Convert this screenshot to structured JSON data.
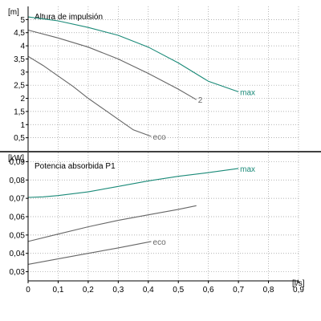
{
  "chart_data": [
    {
      "type": "line",
      "title": "Altura de impulsión",
      "ylabel": "[m]",
      "xlabel": "[l/s]",
      "xlim": [
        0,
        0.9
      ],
      "ylim": [
        0,
        5.5
      ],
      "grid": true,
      "x_ticks": [
        "0",
        "0,1",
        "0,2",
        "0,3",
        "0,4",
        "0,5",
        "0,6",
        "0,7",
        "0,8",
        "0,9"
      ],
      "y_ticks": [
        {
          "v": 0.5,
          "label": "0,5"
        },
        {
          "v": 1,
          "label": "1"
        },
        {
          "v": 1.5,
          "label": "1,5"
        },
        {
          "v": 2,
          "label": "2"
        },
        {
          "v": 2.5,
          "label": "2,5"
        },
        {
          "v": 3,
          "label": "3"
        },
        {
          "v": 3.5,
          "label": "3,5"
        },
        {
          "v": 4,
          "label": "4"
        },
        {
          "v": 4.5,
          "label": "4,5"
        },
        {
          "v": 5,
          "label": "5"
        }
      ],
      "series": [
        {
          "name": "max",
          "color": "#1a8a78",
          "x": [
            0,
            0.1,
            0.2,
            0.3,
            0.4,
            0.5,
            0.6,
            0.7
          ],
          "y": [
            5.1,
            4.95,
            4.7,
            4.4,
            3.95,
            3.35,
            2.65,
            2.25
          ]
        },
        {
          "name": "2",
          "color": "#666666",
          "x": [
            0,
            0.1,
            0.2,
            0.3,
            0.4,
            0.5,
            0.56
          ],
          "y": [
            4.6,
            4.3,
            3.95,
            3.5,
            2.95,
            2.35,
            1.95
          ]
        },
        {
          "name": "eco",
          "color": "#666666",
          "x": [
            0,
            0.05,
            0.1,
            0.15,
            0.2,
            0.25,
            0.3,
            0.35,
            0.41
          ],
          "y": [
            3.6,
            3.25,
            2.85,
            2.45,
            2.0,
            1.6,
            1.2,
            0.8,
            0.55
          ]
        }
      ]
    },
    {
      "type": "line",
      "title": "Potencia absorbida P1",
      "ylabel": "[kW]",
      "xlabel": "[l/s]",
      "xlim": [
        0,
        0.9
      ],
      "ylim": [
        0.025,
        0.095
      ],
      "grid": true,
      "x_ticks": [
        "0",
        "0,1",
        "0,2",
        "0,3",
        "0,4",
        "0,5",
        "0,6",
        "0,7",
        "0,8",
        "0,9"
      ],
      "y_ticks": [
        {
          "v": 0.03,
          "label": "0,03"
        },
        {
          "v": 0.04,
          "label": "0,04"
        },
        {
          "v": 0.05,
          "label": "0,05"
        },
        {
          "v": 0.06,
          "label": "0,06"
        },
        {
          "v": 0.07,
          "label": "0,07"
        },
        {
          "v": 0.08,
          "label": "0,08"
        },
        {
          "v": 0.09,
          "label": "0,09"
        }
      ],
      "series": [
        {
          "name": "max",
          "color": "#1a8a78",
          "x": [
            0,
            0.05,
            0.1,
            0.2,
            0.3,
            0.4,
            0.5,
            0.6,
            0.7
          ],
          "y": [
            0.0705,
            0.0708,
            0.0715,
            0.0735,
            0.0765,
            0.0795,
            0.082,
            0.084,
            0.0863
          ]
        },
        {
          "name": "",
          "color": "#666666",
          "x": [
            0,
            0.1,
            0.2,
            0.3,
            0.4,
            0.5,
            0.56
          ],
          "y": [
            0.0465,
            0.0505,
            0.0545,
            0.058,
            0.061,
            0.064,
            0.066
          ]
        },
        {
          "name": "eco",
          "color": "#666666",
          "x": [
            0,
            0.1,
            0.2,
            0.3,
            0.41
          ],
          "y": [
            0.034,
            0.037,
            0.04,
            0.043,
            0.0465
          ]
        }
      ]
    }
  ]
}
